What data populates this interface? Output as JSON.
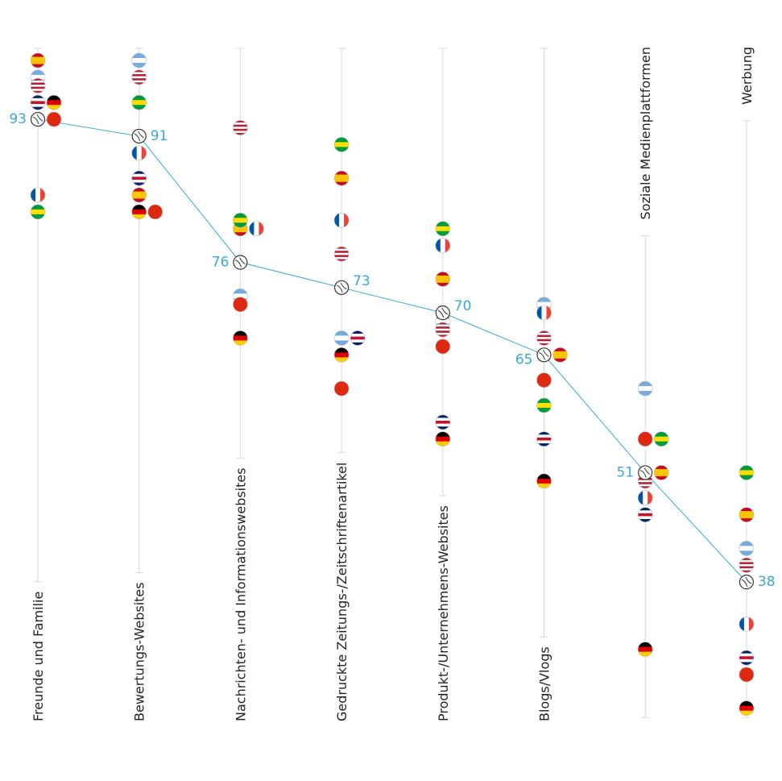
{
  "chart_data": {
    "type": "dot",
    "categories": [
      "Freunde und Familie",
      "Bewertungs-Websites",
      "Nachrichten- und Informationswebsites",
      "Gedruckte Zeitungs-/Zeitschriftenartikel",
      "Produkt-/Unternehmens-Websites",
      "Blogs/Vlogs",
      "Soziale Medienplattformen",
      "Werbung"
    ],
    "label_top": [
      false,
      false,
      false,
      false,
      false,
      false,
      true,
      true
    ],
    "ylim": [
      20,
      100
    ],
    "global": {
      "color": "#3aa8d8",
      "values": [
        93,
        91,
        76,
        73,
        70,
        65,
        51,
        38
      ]
    },
    "series": [
      {
        "colors": [
          "#c60b1e",
          "#ffc400",
          "#ffc400",
          "#c60b1e"
        ],
        "stripes": "h",
        "values": [
          100,
          84,
          80,
          86,
          74,
          65,
          51,
          46
        ]
      },
      {
        "colors": [
          "#74acdf",
          "#ffffff",
          "#74acdf"
        ],
        "stripes": "h",
        "values": [
          98,
          100,
          72,
          67,
          69,
          71,
          61,
          42
        ]
      },
      {
        "colors": [
          "#b22234",
          "#ffffff",
          "#b22234",
          "#ffffff",
          "#b22234",
          "#ffffff",
          "#b22234"
        ],
        "stripes": "h",
        "values": [
          97,
          98,
          92,
          77,
          68,
          67,
          50,
          40
        ]
      },
      {
        "colors": [
          "#012169",
          "#ffffff",
          "#c8102e",
          "#ffffff",
          "#012169"
        ],
        "stripes": "h",
        "values": [
          95,
          86,
          null,
          67,
          57,
          55,
          46,
          29
        ]
      },
      {
        "colors": [
          "#000000",
          "#dd0000",
          "#ffce00"
        ],
        "stripes": "h",
        "values": [
          95,
          82,
          67,
          65,
          55,
          50,
          30,
          23
        ]
      },
      {
        "colors": [
          "#de2910"
        ],
        "stripes": "h",
        "values": [
          93,
          82,
          71,
          61,
          66,
          62,
          55,
          27
        ]
      },
      {
        "colors": [
          "#0055a4",
          "#ffffff",
          "#ef4135"
        ],
        "stripes": "v",
        "values": [
          84,
          89,
          80,
          81,
          78,
          70,
          48,
          33
        ]
      },
      {
        "colors": [
          "#009c3b",
          "#ffdf00",
          "#009c3b"
        ],
        "stripes": "h",
        "values": [
          82,
          95,
          81,
          90,
          80,
          59,
          55,
          51
        ]
      }
    ]
  }
}
